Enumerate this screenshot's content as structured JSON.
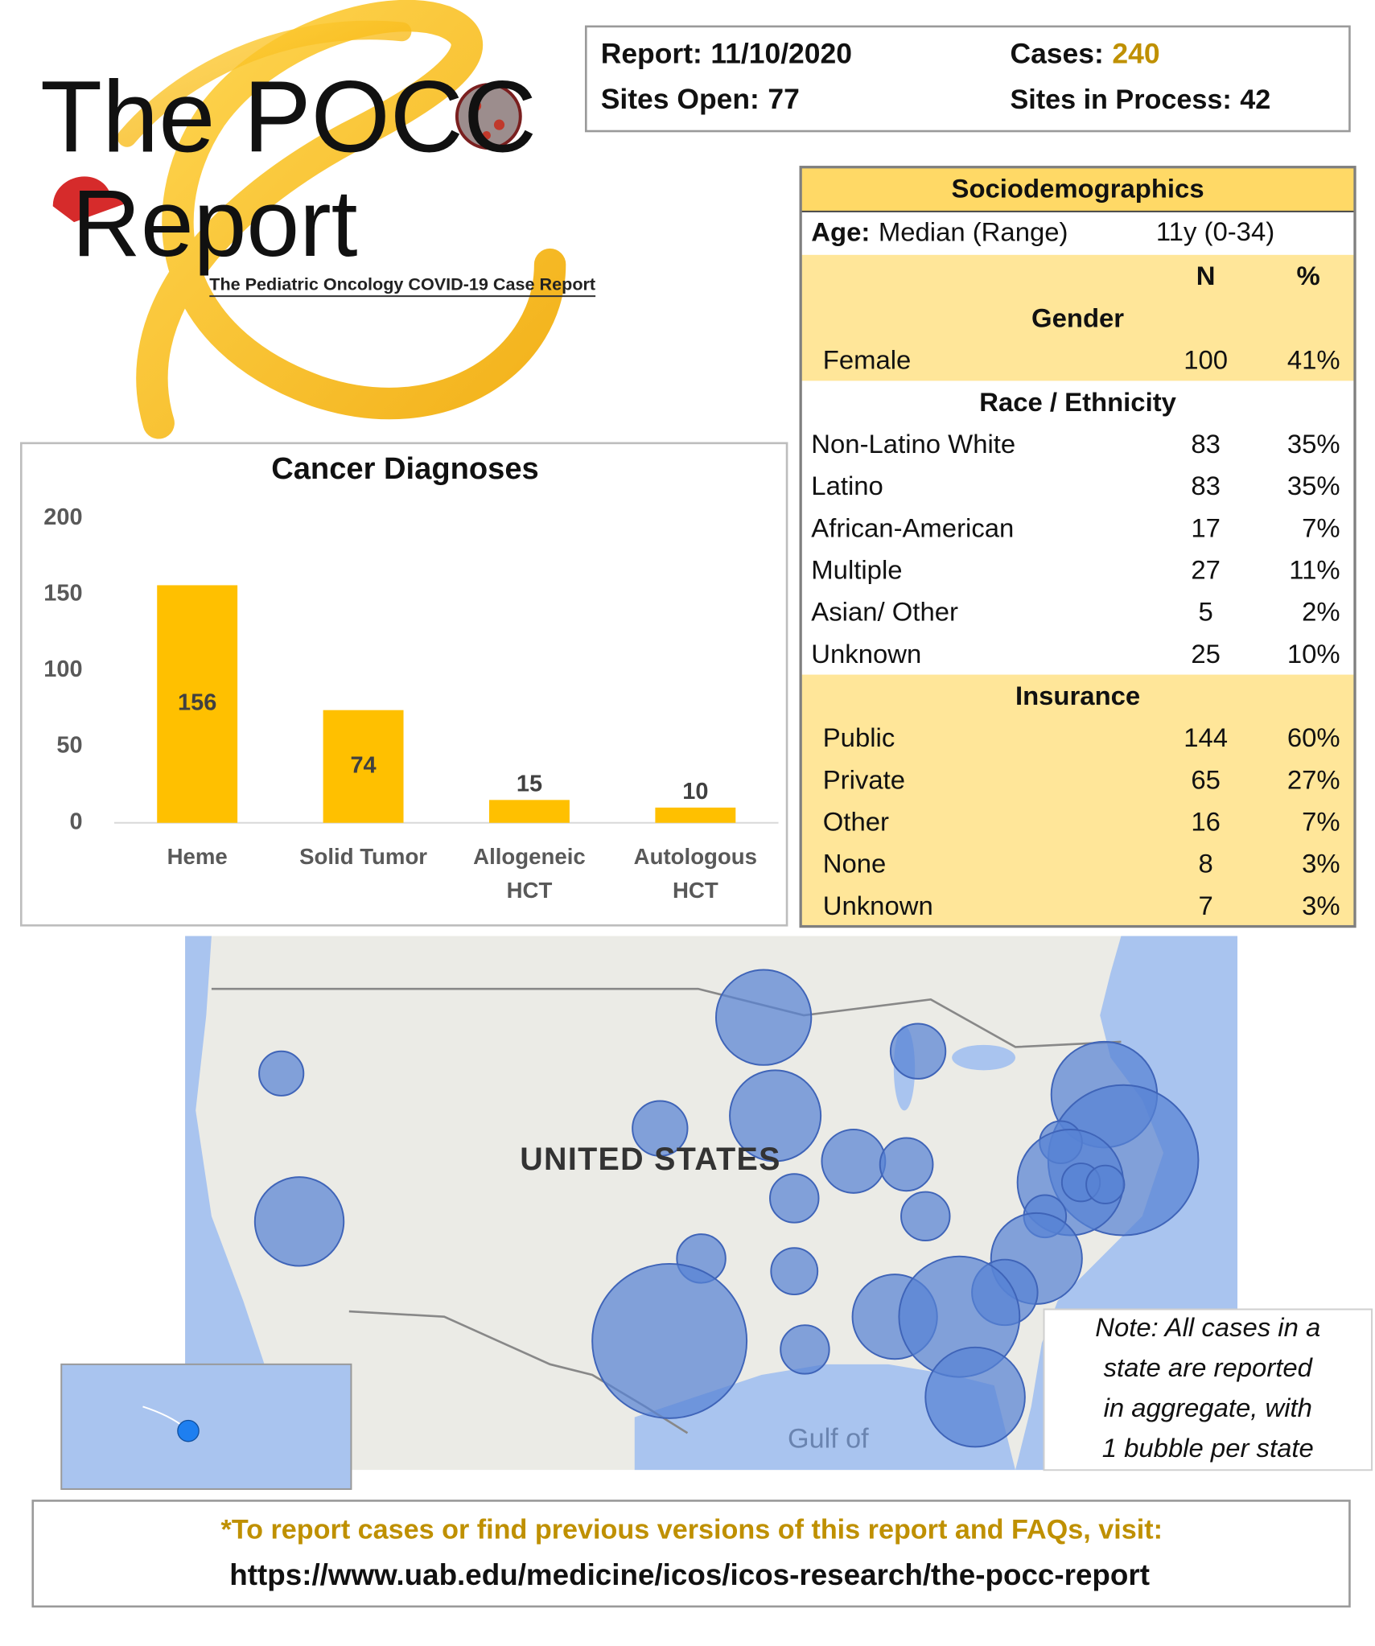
{
  "logo": {
    "title_line1": "The POCC",
    "title_line2": "Report",
    "subtitle": "The Pediatric Oncology COVID-19 Case Report"
  },
  "header": {
    "report": {
      "label": "Report:",
      "value": "11/10/2020"
    },
    "cases": {
      "label": "Cases:",
      "value": 240
    },
    "sites_open": {
      "label": "Sites Open:",
      "value": 77
    },
    "sites_in_process": {
      "label": "Sites in Process:",
      "value": 42
    }
  },
  "sociodemographics": {
    "title": "Sociodemographics",
    "age": {
      "label": "Age:",
      "measure": "Median (Range)",
      "value": "11y (0-34)"
    },
    "columns": [
      "N",
      "%"
    ],
    "sections": [
      {
        "title": "Gender",
        "rows": [
          {
            "label": "Female",
            "n": 100,
            "pct": "41%"
          }
        ]
      },
      {
        "title": "Race / Ethnicity",
        "rows": [
          {
            "label": "Non-Latino White",
            "n": 83,
            "pct": "35%"
          },
          {
            "label": "Latino",
            "n": 83,
            "pct": "35%"
          },
          {
            "label": "African-American",
            "n": 17,
            "pct": "7%"
          },
          {
            "label": "Multiple",
            "n": 27,
            "pct": "11%"
          },
          {
            "label": "Asian/ Other",
            "n": 5,
            "pct": "2%"
          },
          {
            "label": "Unknown",
            "n": 25,
            "pct": "10%"
          }
        ]
      },
      {
        "title": "Insurance",
        "rows": [
          {
            "label": "Public",
            "n": 144,
            "pct": "60%"
          },
          {
            "label": "Private",
            "n": 65,
            "pct": "27%"
          },
          {
            "label": "Other",
            "n": 16,
            "pct": "7%"
          },
          {
            "label": "None",
            "n": 8,
            "pct": "3%"
          },
          {
            "label": "Unknown",
            "n": 7,
            "pct": "3%"
          }
        ]
      }
    ]
  },
  "chart_data": {
    "type": "bar",
    "title": "Cancer Diagnoses",
    "categories": [
      "Heme",
      "Solid Tumor",
      "Allogeneic HCT",
      "Autologous HCT"
    ],
    "values": [
      156,
      74,
      15,
      10
    ],
    "color": "#ffc000",
    "ylim": [
      0,
      200
    ],
    "yticks": [
      0,
      50,
      100,
      150,
      200
    ]
  },
  "map": {
    "label": "UNITED STATES",
    "water_label": "Gulf of",
    "note": [
      "Note: All cases in a",
      "state are reported",
      "in aggregate, with",
      "1 bubble per state"
    ]
  },
  "footer": {
    "line1": "*To report cases or find previous versions of this report and FAQs, visit:",
    "url": "https://www.uab.edu/medicine/icos/icos-research/the-pocc-report"
  }
}
